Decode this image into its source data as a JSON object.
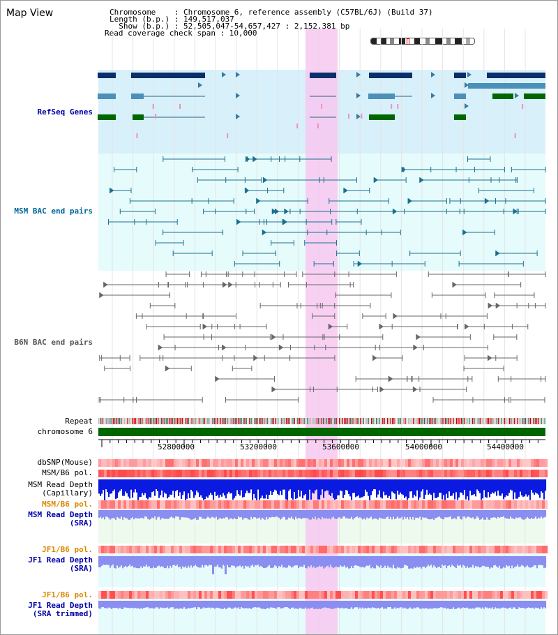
{
  "page": {
    "title": "Map View"
  },
  "info": {
    "chromosome_line": "Chromosome    : Chromosome 6, reference assembly (C57BL/6J) (Build 37)",
    "length_line": "Length (b.p.) : 149,517,037",
    "show_line": "  Show (b.p.) : 52,505,047-54,657,427 : 2,152,381 bp",
    "coverage_line": "Read coverage check span : 10,000"
  },
  "tracks": {
    "refseq": {
      "label": "RefSeq Genes",
      "color": "#0000aa"
    },
    "msm_bac": {
      "label": "MSM BAC end pairs",
      "color": "#006699"
    },
    "b6n_bac": {
      "label": "B6N BAC end pairs",
      "color": "#555555"
    },
    "repeat": {
      "label": "Repeat"
    },
    "chromosome": {
      "label": "chromosome 6"
    },
    "dbsnp": {
      "label": "dbSNP(Mouse)"
    },
    "msm_b6_pol": {
      "label": "MSM/B6 pol."
    },
    "msm_read_depth_cap": {
      "label": "MSM Read Depth",
      "sub": "(Capillary)"
    },
    "msm_b6_pol2": {
      "label": "MSM/B6 pol.",
      "color": "#dd8800"
    },
    "msm_read_depth_sra": {
      "label": "MSM Read Depth",
      "sub": "(SRA)"
    },
    "jf1_b6_pol": {
      "label": "JF1/B6 pol.",
      "color": "#dd8800"
    },
    "jf1_read_depth_sra": {
      "label": "JF1 Read Depth",
      "sub": "(SRA)"
    },
    "jf1_b6_pol2": {
      "label": "JF1/B6 pol.",
      "color": "#dd8800"
    },
    "jf1_read_depth_trim": {
      "label": "JF1 Read Depth",
      "sub": "(SRA trimmed)"
    }
  },
  "axis": {
    "ticks": [
      "52800000",
      "53200000",
      "53600000",
      "54000000",
      "54400000"
    ]
  },
  "colors": {
    "highlight": "#f7c8f0",
    "refseq_bg": "#d8f0fa",
    "msm_bg": "#e6fbfb",
    "gene_dark": "#0a2f6a",
    "gene_mid": "#4a90b8",
    "gene_green": "#006600",
    "depth_blue": "#0a1ae0",
    "depth_light": "#8a8ef0"
  }
}
